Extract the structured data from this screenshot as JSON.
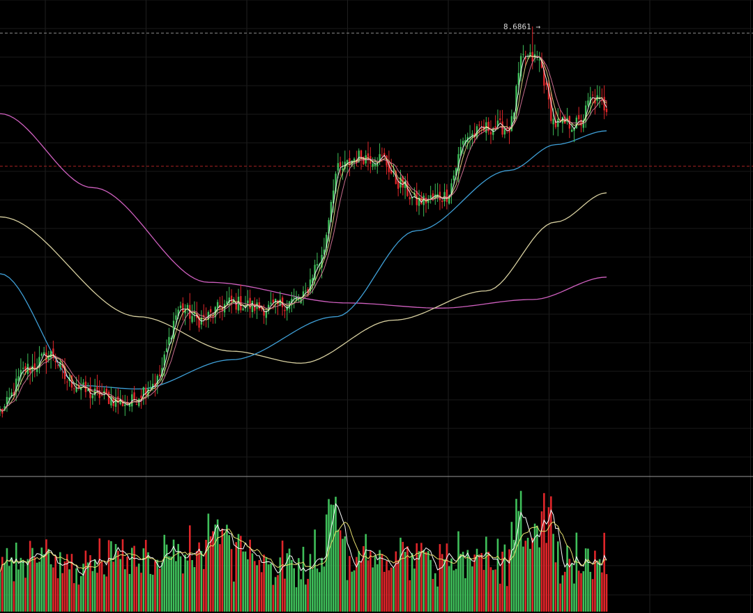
{
  "chart_data": {
    "type": "candlestick",
    "peak_label": "8.6861 →",
    "up_color": "#3fbf5a",
    "down_color": "#e0262a",
    "ma_colors": {
      "ma_fast1": "#ffffff",
      "ma_fast2": "#f0e08a",
      "ma_fast3": "#e07aa0",
      "ma_mid": "#3fa0d8",
      "ma_slow": "#d8d0a0",
      "ma_long": "#d060c0",
      "vol_ma1": "#ffffff",
      "vol_ma2": "#e8e070"
    },
    "grid": true,
    "key_points": [
      {
        "i": 0,
        "c": 6.45
      },
      {
        "i": 12,
        "c": 6.7
      },
      {
        "i": 22,
        "c": 6.78
      },
      {
        "i": 30,
        "c": 6.62
      },
      {
        "i": 40,
        "c": 6.55
      },
      {
        "i": 55,
        "c": 6.5
      },
      {
        "i": 67,
        "c": 6.62
      },
      {
        "i": 78,
        "c": 7.05
      },
      {
        "i": 86,
        "c": 6.98
      },
      {
        "i": 100,
        "c": 7.08
      },
      {
        "i": 115,
        "c": 7.05
      },
      {
        "i": 130,
        "c": 7.1
      },
      {
        "i": 138,
        "c": 7.32
      },
      {
        "i": 146,
        "c": 7.85
      },
      {
        "i": 155,
        "c": 7.93
      },
      {
        "i": 165,
        "c": 7.92
      },
      {
        "i": 172,
        "c": 7.78
      },
      {
        "i": 180,
        "c": 7.67
      },
      {
        "i": 192,
        "c": 7.7
      },
      {
        "i": 202,
        "c": 8.05
      },
      {
        "i": 212,
        "c": 8.1
      },
      {
        "i": 220,
        "c": 8.1
      },
      {
        "i": 226,
        "c": 8.5
      },
      {
        "i": 232,
        "c": 8.5
      },
      {
        "i": 240,
        "c": 8.12
      },
      {
        "i": 250,
        "c": 8.12
      },
      {
        "i": 256,
        "c": 8.27
      },
      {
        "i": 262,
        "c": 8.22
      }
    ],
    "long_ma_points": [
      {
        "i": 0,
        "v": 8.18
      },
      {
        "i": 40,
        "v": 7.75
      },
      {
        "i": 90,
        "v": 7.2
      },
      {
        "i": 150,
        "v": 7.08
      },
      {
        "i": 190,
        "v": 7.05
      },
      {
        "i": 230,
        "v": 7.1
      },
      {
        "i": 262,
        "v": 7.23
      }
    ],
    "slow_ma_points": [
      {
        "i": 0,
        "v": 7.58
      },
      {
        "i": 60,
        "v": 7.0
      },
      {
        "i": 100,
        "v": 6.8
      },
      {
        "i": 130,
        "v": 6.73
      },
      {
        "i": 170,
        "v": 6.98
      },
      {
        "i": 210,
        "v": 7.15
      },
      {
        "i": 240,
        "v": 7.55
      },
      {
        "i": 262,
        "v": 7.72
      }
    ],
    "mid_ma_points": [
      {
        "i": 0,
        "v": 7.25
      },
      {
        "i": 35,
        "v": 6.6
      },
      {
        "i": 60,
        "v": 6.58
      },
      {
        "i": 100,
        "v": 6.75
      },
      {
        "i": 145,
        "v": 7.0
      },
      {
        "i": 180,
        "v": 7.5
      },
      {
        "i": 220,
        "v": 7.85
      },
      {
        "i": 240,
        "v": 8.0
      },
      {
        "i": 262,
        "v": 8.08
      }
    ],
    "current_price_ratio": 0.271,
    "top_level_ratio": 0.054,
    "peak_value": 8.6861
  }
}
